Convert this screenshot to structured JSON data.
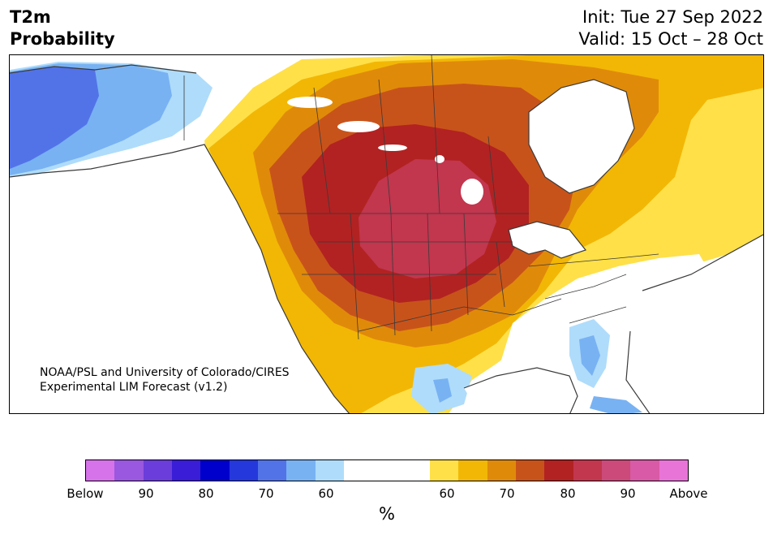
{
  "header": {
    "title_line1": "T2m",
    "title_line2": "Probability",
    "init": "Init: Tue 27 Sep 2022",
    "valid": "Valid: 15 Oct – 28 Oct"
  },
  "map": {
    "credit_line1": "NOAA/PSL and University of Colorado/CIRES",
    "credit_line2": "Experimental LIM Forecast (v1.2)"
  },
  "colorbar": {
    "unit": "%",
    "colors": [
      "#d672ea",
      "#9a57e0",
      "#6b3ddb",
      "#3a1dd6",
      "#0000cd",
      "#2538db",
      "#5273e8",
      "#78b2f3",
      "#afdcfb",
      "#ffffff",
      "#ffe048",
      "#f2b705",
      "#e08a0a",
      "#c8531a",
      "#b22222",
      "#c2364e",
      "#cc4a7a",
      "#d95aa6",
      "#e874d8"
    ],
    "tick_labels": [
      "Below",
      "90",
      "80",
      "70",
      "60",
      "60",
      "70",
      "80",
      "90",
      "Above"
    ]
  },
  "palette": {
    "below_blue": "#5273e8",
    "below_light": "#78b2f3",
    "below_pale": "#afdcfb",
    "above_yellow": "#ffe048",
    "above_gold": "#f2b705",
    "above_orange": "#e08a0a",
    "above_burnt": "#c8531a",
    "above_red": "#b22222",
    "above_crimson": "#c2364e",
    "water": "#ffffff",
    "border": "#3a3a3a"
  }
}
